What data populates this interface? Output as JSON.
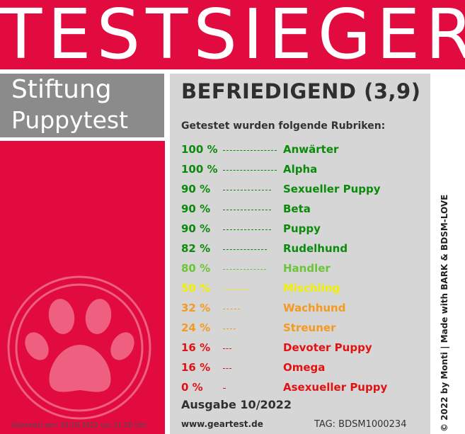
{
  "header": {
    "title": "TESTSIEGER"
  },
  "brand": {
    "line1": "Stiftung",
    "line2": "Puppytest"
  },
  "result": {
    "grade": "BEFRIEDIGEND (3,9)",
    "subtitle": "Getestet wurden folgende Rubriken:",
    "rows": [
      {
        "pct_label": "100 %",
        "value": 100,
        "name": "Anwärter",
        "color": "#0b8a0b"
      },
      {
        "pct_label": "100 %",
        "value": 100,
        "name": "Alpha",
        "color": "#0b8a0b"
      },
      {
        "pct_label": "90 %",
        "value": 90,
        "name": "Sexueller Puppy",
        "color": "#0b8a0b"
      },
      {
        "pct_label": "90 %",
        "value": 90,
        "name": "Beta",
        "color": "#0b8a0b"
      },
      {
        "pct_label": "90 %",
        "value": 90,
        "name": "Puppy",
        "color": "#0b8a0b"
      },
      {
        "pct_label": "82 %",
        "value": 82,
        "name": "Rudelhund",
        "color": "#0b8a0b"
      },
      {
        "pct_label": "80 %",
        "value": 80,
        "name": "Handler",
        "color": "#6cc43a"
      },
      {
        "pct_label": "50 %",
        "value": 50,
        "name": "Mischling",
        "color": "#f0f000"
      },
      {
        "pct_label": "32 %",
        "value": 32,
        "name": "Wachhund",
        "color": "#f39a1f"
      },
      {
        "pct_label": "24 %",
        "value": 24,
        "name": "Streuner",
        "color": "#f39a1f"
      },
      {
        "pct_label": "16 %",
        "value": 16,
        "name": "Devoter Puppy",
        "color": "#e21212"
      },
      {
        "pct_label": "16 %",
        "value": 16,
        "name": "Omega",
        "color": "#e21212"
      },
      {
        "pct_label": "0 %",
        "value": 0,
        "name": "Asexueller Puppy",
        "color": "#e21212"
      }
    ],
    "issue": "Ausgabe 10/2022",
    "website": "www.geartest.de",
    "tag": "TAG: BDSM1000234"
  },
  "footer": {
    "generated": "Generiert am: 30.10.2022 um 21:26 Uhr",
    "credit": "© 2022 by Monti | Made with BARK & BDSM-LOVE"
  },
  "paw_icon": "paw-print-icon"
}
